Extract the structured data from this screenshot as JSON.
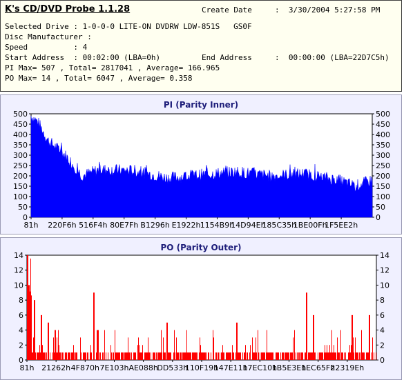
{
  "app_title": "K's CD/DVD Probe 1.1.28",
  "info": {
    "create_date_label": "Create Date",
    "create_date_value": ":  3/30/2004 5:27:58 PM",
    "selected_drive": "Selected Drive : 1-0-0-0 LITE-ON DVDRW LDW-851S   GS0F",
    "disc_manufacturer": "Disc Manufacturer :",
    "speed": "Speed          : 4",
    "start_address": "Start Address  : 00:02:00 (LBA=0h)",
    "end_address_label": "End Address",
    "end_address_value": ":  00:00:00 (LBA=22D7C5h)",
    "pi_summary": "PI Max= 507 , Total= 2817041 , Average= 166.965",
    "po_summary": "PO Max= 14 , Total= 6047 , Average= 0.358"
  },
  "chart_data": [
    {
      "type": "area",
      "title": "PI (Parity Inner)",
      "color": "#0000ff",
      "ylim": [
        0,
        500
      ],
      "yticks": [
        0,
        50,
        100,
        150,
        200,
        250,
        300,
        350,
        400,
        450,
        500
      ],
      "xtick_labels": [
        "81h",
        "220F6h",
        "516F4h",
        "80E7Fh",
        "B1296h",
        "E1922h",
        "1154B9h",
        "14D94Eh",
        "185C35h",
        "1BE00Fh",
        "1F5EE2h"
      ],
      "x_frac": [
        0,
        0.02,
        0.05,
        0.1,
        0.15,
        0.2,
        0.3,
        0.4,
        0.5,
        0.6,
        0.7,
        0.8,
        0.9,
        0.95,
        1.0
      ],
      "values": [
        490,
        460,
        370,
        300,
        200,
        230,
        225,
        190,
        205,
        220,
        200,
        210,
        180,
        150,
        180
      ]
    },
    {
      "type": "bar",
      "title": "PO (Parity Outer)",
      "color": "#ff0000",
      "ylim": [
        0,
        14
      ],
      "yticks": [
        0,
        2,
        4,
        6,
        8,
        10,
        12,
        14
      ],
      "xtick_labels": [
        "81h",
        "21262h",
        "4F870h",
        "7E103h",
        "AE088h",
        "DD533h",
        "110F19h",
        "147E11h",
        "17EC10h",
        "1B5E3Eh",
        "1EC65Fh",
        "22319Eh"
      ],
      "peaks_frac": [
        0,
        0.005,
        0.02,
        0.04,
        0.06,
        0.08,
        0.19,
        0.4,
        0.6,
        0.8,
        0.82,
        0.93,
        0.98
      ],
      "peaks_values": [
        14,
        10,
        8,
        6,
        5,
        4,
        9,
        5,
        5,
        9,
        6,
        6,
        6
      ],
      "baseline_value": 1
    }
  ]
}
